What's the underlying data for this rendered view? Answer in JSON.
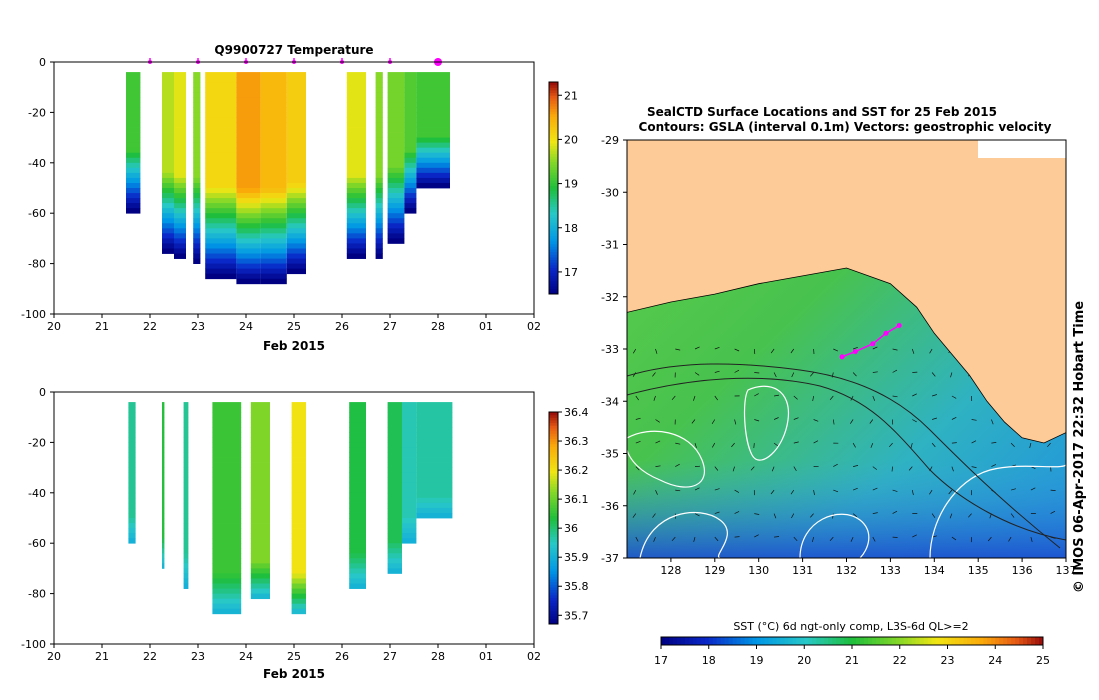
{
  "chart_data": [
    {
      "type": "heatmap",
      "id": "temp",
      "title": "Q9900727  Temperature",
      "xlabel": "Feb 2015",
      "ylabel": "",
      "xlim": [
        20,
        30
      ],
      "ylim": [
        -100,
        0
      ],
      "x_ticks": [
        "20",
        "21",
        "22",
        "23",
        "24",
        "25",
        "26",
        "27",
        "28",
        "01",
        "02"
      ],
      "y_ticks": [
        "0",
        "-20",
        "-40",
        "-60",
        "-80",
        "-100"
      ],
      "markers_x": [
        22,
        23,
        24,
        25,
        26,
        27,
        28
      ],
      "colorbar": {
        "min": 16.5,
        "max": 21.3,
        "ticks": [
          "17",
          "18",
          "19",
          "20",
          "21"
        ]
      },
      "profiles": [
        {
          "x0": 21.5,
          "x1": 21.8,
          "depth": -58,
          "surface": 19.1
        },
        {
          "x0": 22.25,
          "x1": 22.5,
          "depth": -73,
          "surface": 19.7
        },
        {
          "x0": 22.5,
          "x1": 22.75,
          "depth": -76,
          "surface": 19.9
        },
        {
          "x0": 22.9,
          "x1": 23.05,
          "depth": -78,
          "surface": 19.5
        },
        {
          "x0": 23.15,
          "x1": 23.8,
          "depth": -84,
          "surface": 20.1
        },
        {
          "x0": 23.8,
          "x1": 24.3,
          "depth": -85,
          "surface": 20.6
        },
        {
          "x0": 24.3,
          "x1": 24.85,
          "depth": -86,
          "surface": 20.4
        },
        {
          "x0": 24.85,
          "x1": 25.25,
          "depth": -82,
          "surface": 20.2
        },
        {
          "x0": 26.1,
          "x1": 26.5,
          "depth": -75,
          "surface": 19.9
        },
        {
          "x0": 26.7,
          "x1": 26.85,
          "depth": -75,
          "surface": 19.5
        },
        {
          "x0": 26.95,
          "x1": 27.3,
          "depth": -70,
          "surface": 19.4
        },
        {
          "x0": 27.3,
          "x1": 27.55,
          "depth": -58,
          "surface": 19.2
        },
        {
          "x0": 27.55,
          "x1": 28.25,
          "depth": -48,
          "surface": 19.1
        }
      ]
    },
    {
      "type": "heatmap",
      "id": "sal",
      "title": "",
      "xlabel": "Feb 2015",
      "ylabel": "",
      "xlim": [
        20,
        30
      ],
      "ylim": [
        -100,
        0
      ],
      "x_ticks": [
        "20",
        "21",
        "22",
        "23",
        "24",
        "25",
        "26",
        "27",
        "28",
        "01",
        "02"
      ],
      "y_ticks": [
        "0",
        "-20",
        "-40",
        "-60",
        "-80",
        "-100"
      ],
      "colorbar": {
        "min": 35.67,
        "max": 36.4,
        "ticks": [
          "35.7",
          "35.8",
          "35.9",
          "36",
          "36.1",
          "36.2",
          "36.3",
          "36.4"
        ]
      },
      "profiles": [
        {
          "x0": 21.55,
          "x1": 21.7,
          "depth": -58,
          "surface": 35.98
        },
        {
          "x0": 22.25,
          "x1": 22.3,
          "depth": -68,
          "surface": 36.04
        },
        {
          "x0": 22.7,
          "x1": 22.8,
          "depth": -76,
          "surface": 35.98
        },
        {
          "x0": 23.3,
          "x1": 23.9,
          "depth": -85,
          "surface": 36.06
        },
        {
          "x0": 24.1,
          "x1": 24.5,
          "depth": -80,
          "surface": 36.12
        },
        {
          "x0": 24.95,
          "x1": 25.25,
          "depth": -85,
          "surface": 36.2
        },
        {
          "x0": 26.15,
          "x1": 26.5,
          "depth": -75,
          "surface": 36.03
        },
        {
          "x0": 26.95,
          "x1": 27.25,
          "depth": -70,
          "surface": 36.02
        },
        {
          "x0": 27.25,
          "x1": 27.55,
          "depth": -58,
          "surface": 35.96
        },
        {
          "x0": 27.55,
          "x1": 28.3,
          "depth": -48,
          "surface": 35.97
        }
      ]
    },
    {
      "type": "map",
      "id": "map",
      "title": "SealCTD Surface Locations and SST for 25 Feb 2015",
      "subtitle": "Contours: GSLA (interval 0.1m) Vectors: geostrophic velocity",
      "xlim": [
        127,
        137
      ],
      "ylim": [
        -37,
        -29
      ],
      "x_ticks": [
        "128",
        "129",
        "130",
        "131",
        "132",
        "133",
        "134",
        "135",
        "136",
        "137"
      ],
      "y_ticks": [
        "-29",
        "-30",
        "-31",
        "-32",
        "-33",
        "-34",
        "-35",
        "-36",
        "-37"
      ],
      "coast": [
        [
          127,
          -32.3
        ],
        [
          128,
          -32.1
        ],
        [
          129,
          -31.95
        ],
        [
          130,
          -31.75
        ],
        [
          131,
          -31.6
        ],
        [
          132,
          -31.45
        ],
        [
          133,
          -31.75
        ],
        [
          133.6,
          -32.2
        ],
        [
          134,
          -32.7
        ],
        [
          134.4,
          -33.1
        ],
        [
          134.8,
          -33.5
        ],
        [
          135.2,
          -34
        ],
        [
          135.6,
          -34.4
        ],
        [
          136,
          -34.7
        ],
        [
          136.5,
          -34.8
        ],
        [
          137,
          -34.6
        ]
      ],
      "track": [
        [
          131.9,
          -33.15
        ],
        [
          132.2,
          -33.05
        ],
        [
          132.6,
          -32.9
        ],
        [
          132.9,
          -32.7
        ],
        [
          133.2,
          -32.55
        ]
      ],
      "colorbar": {
        "min": 17,
        "max": 25,
        "label": "SST (°C) 6d ngt-only comp, L3S-6d QL>=2",
        "ticks": [
          "17",
          "18",
          "19",
          "20",
          "21",
          "22",
          "23",
          "24",
          "25"
        ]
      },
      "credit": "© IMOS 06-Apr-2017 22:32 Hobart Time"
    }
  ]
}
